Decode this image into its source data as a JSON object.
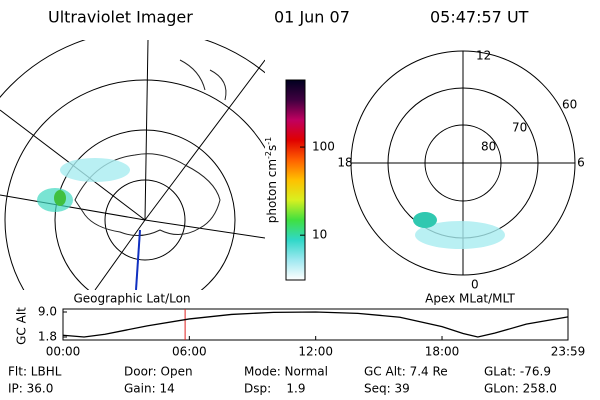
{
  "header": {
    "title": "Ultraviolet Imager",
    "date": "01 Jun 07",
    "time": "05:47:57 UT"
  },
  "left_map": {
    "label": "Geographic Lat/Lon"
  },
  "right_map": {
    "label": "Apex MLat/MLT",
    "lat_labels": [
      "60",
      "70",
      "80"
    ],
    "mlt_labels": [
      "12",
      "18",
      "6",
      "0"
    ]
  },
  "colorbar": {
    "label_parts": [
      "photon cm",
      "-2",
      "s",
      "-1"
    ],
    "clim": [
      3.1,
      577
    ],
    "ticks": [
      10,
      100
    ],
    "log": true,
    "colors": [
      "#ffffff",
      "#9ee8f0",
      "#30d8c8",
      "#40e040",
      "#d8f020",
      "#ffc000",
      "#ff6000",
      "#e00000",
      "#c00060",
      "#400040",
      "#000020"
    ]
  },
  "chart_data": {
    "type": "line",
    "ylabel": "GC Alt",
    "x": [
      0,
      1,
      2,
      3,
      4,
      6,
      8,
      10,
      12,
      14,
      16,
      18,
      19,
      19.7,
      20.5,
      22,
      23.983
    ],
    "series": [
      {
        "name": "GC Alt",
        "color": "#000000",
        "values": [
          2.3,
          1.8,
          2.6,
          3.8,
          5.0,
          7.0,
          8.3,
          8.9,
          9.0,
          8.6,
          7.5,
          4.8,
          2.8,
          1.8,
          2.9,
          5.5,
          7.6
        ]
      }
    ],
    "xlim": [
      0,
      23.983
    ],
    "xticks": [
      {
        "value": 0,
        "label": "00:00"
      },
      {
        "value": 6,
        "label": "06:00"
      },
      {
        "value": 12,
        "label": "12:00"
      },
      {
        "value": 18,
        "label": "18:00"
      },
      {
        "value": 23.983,
        "label": "23:59"
      }
    ],
    "ylim": [
      1.8,
      9
    ],
    "yticks": [
      {
        "value": 9,
        "label": "9.0"
      },
      1.8
    ],
    "marker_x": 5.799,
    "marker_color": "#e02020"
  },
  "footer": {
    "rows": [
      [
        "Flt: LBHL",
        "Door: Open",
        "Mode: Normal",
        "GC Alt: 7.4 Re",
        "GLat: -76.9"
      ],
      [
        "IP: 36.0",
        "Gain: 14",
        "Dsp:    1.9",
        "Seq: 39",
        "GLon: 258.0"
      ]
    ]
  }
}
